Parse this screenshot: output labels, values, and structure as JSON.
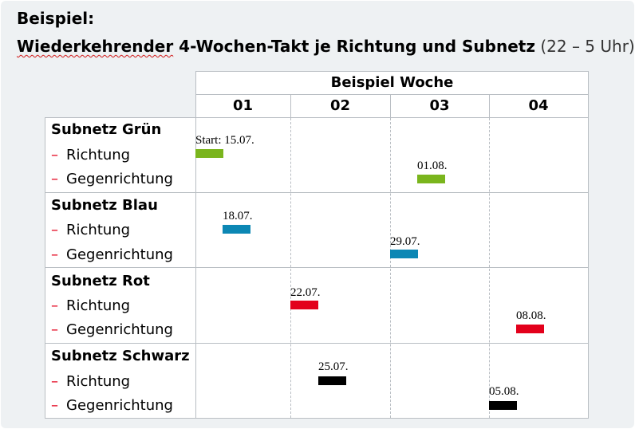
{
  "heading": {
    "line1": "Beispiel:",
    "line2_main": "Wiederkehrender",
    "line2_rest": " 4-Wochen-Takt je Richtung und Subnetz",
    "line2_time": "(22 – 5 Uhr)"
  },
  "table": {
    "header_title": "Beispiel Woche",
    "weeks": [
      "01",
      "02",
      "03",
      "04"
    ],
    "subnets": [
      {
        "name": "Subnetz Grün",
        "dir1": "Richtung",
        "dir2": "Gegenrichtung"
      },
      {
        "name": "Subnetz Blau",
        "dir1": "Richtung",
        "dir2": "Gegenrichtung"
      },
      {
        "name": "Subnetz Rot",
        "dir1": "Richtung",
        "dir2": "Gegenrichtung"
      },
      {
        "name": "Subnetz Schwarz",
        "dir1": "Richtung",
        "dir2": "Gegenrichtung"
      }
    ],
    "dash_symbol": "–"
  },
  "markers": [
    {
      "label": "Start: 15.07.",
      "subnet": 0,
      "direction": 1,
      "color": "#7ab51d"
    },
    {
      "label": "01.08.",
      "subnet": 0,
      "direction": 2,
      "color": "#7ab51d"
    },
    {
      "label": "18.07.",
      "subnet": 1,
      "direction": 1,
      "color": "#0c87b4"
    },
    {
      "label": "29.07.",
      "subnet": 1,
      "direction": 2,
      "color": "#0c87b4"
    },
    {
      "label": "22.07.",
      "subnet": 2,
      "direction": 1,
      "color": "#e3001b"
    },
    {
      "label": "08.08.",
      "subnet": 2,
      "direction": 2,
      "color": "#e3001b"
    },
    {
      "label": "25.07.",
      "subnet": 3,
      "direction": 1,
      "color": "#000000"
    },
    {
      "label": "05.08.",
      "subnet": 3,
      "direction": 2,
      "color": "#000000"
    }
  ]
}
